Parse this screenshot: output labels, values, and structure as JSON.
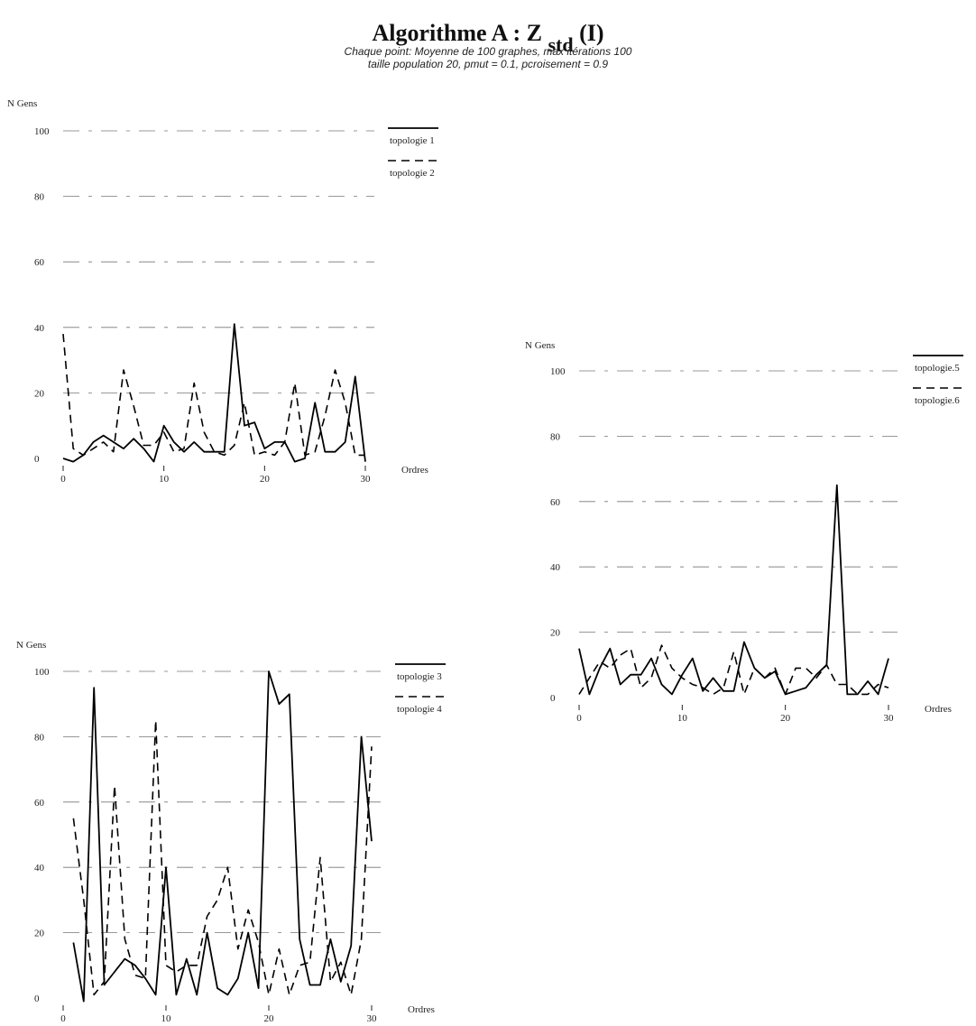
{
  "header": {
    "title_main": "Algorithme A : Z",
    "title_sub": "std",
    "title_suffix": "(I)",
    "subtitle_line1": "Chaque point: Moyenne de 100 graphes, max itérations 100",
    "subtitle_line2": "taille population 20, pmut = 0.1, pcroisement = 0.9"
  },
  "chart_data": [
    {
      "type": "line",
      "ylabel": "N Gens",
      "xlabel": "Ordres",
      "xlim": [
        0,
        30
      ],
      "ylim": [
        0,
        100
      ],
      "xticks": [
        0,
        10,
        20,
        30
      ],
      "yticks": [
        0,
        20,
        40,
        60,
        80,
        100
      ],
      "grid": true,
      "legend": "top-right",
      "series": [
        {
          "name": "topologie 1",
          "style": "solid",
          "x": [
            0,
            1,
            2,
            3,
            4,
            5,
            6,
            7,
            8,
            9,
            10,
            11,
            12,
            13,
            14,
            15,
            16,
            17,
            18,
            19,
            20,
            21,
            22,
            23,
            24,
            25,
            26,
            27,
            28,
            29,
            30
          ],
          "values": [
            0,
            -1,
            1,
            5,
            7,
            5,
            3,
            6,
            3,
            -1,
            10,
            5,
            2,
            5,
            2,
            2,
            2,
            41,
            10,
            11,
            3,
            5,
            5,
            -1,
            0,
            17,
            2,
            2,
            5,
            25,
            -1
          ]
        },
        {
          "name": "topologie 2",
          "style": "dashed",
          "x": [
            0,
            1,
            2,
            3,
            4,
            5,
            6,
            7,
            8,
            9,
            10,
            11,
            12,
            13,
            14,
            15,
            16,
            17,
            18,
            19,
            20,
            21,
            22,
            23,
            24,
            25,
            26,
            27,
            28,
            29,
            30
          ],
          "values": [
            38,
            3,
            1,
            3,
            5,
            2,
            27,
            16,
            4,
            4,
            8,
            2,
            3,
            23,
            8,
            2,
            1,
            4,
            17,
            1,
            2,
            1,
            5,
            23,
            1,
            2,
            13,
            27,
            17,
            1,
            1
          ]
        }
      ]
    },
    {
      "type": "line",
      "ylabel": "N Gens",
      "xlabel": "Ordres",
      "xlim": [
        0,
        30
      ],
      "ylim": [
        0,
        100
      ],
      "xticks": [
        0,
        10,
        20,
        30
      ],
      "yticks": [
        0,
        20,
        40,
        60,
        80,
        100
      ],
      "grid": true,
      "legend": "top-right",
      "series": [
        {
          "name": "topologie 3",
          "style": "solid",
          "x": [
            1,
            2,
            3,
            4,
            5,
            6,
            7,
            8,
            9,
            10,
            11,
            12,
            13,
            14,
            15,
            16,
            17,
            18,
            19,
            20,
            21,
            22,
            23,
            24,
            25,
            26,
            27,
            28,
            29,
            30
          ],
          "values": [
            17,
            -1,
            95,
            4,
            8,
            12,
            10,
            6,
            1,
            40,
            1,
            12,
            1,
            20,
            3,
            1,
            6,
            20,
            3,
            100,
            90,
            93,
            18,
            4,
            4,
            18,
            5,
            16,
            80,
            48
          ]
        },
        {
          "name": "topologie 4",
          "style": "dashed",
          "x": [
            1,
            2,
            3,
            4,
            5,
            6,
            7,
            8,
            9,
            10,
            11,
            12,
            13,
            14,
            15,
            16,
            17,
            18,
            19,
            20,
            21,
            22,
            23,
            24,
            25,
            26,
            27,
            28,
            29,
            30
          ],
          "values": [
            55,
            30,
            1,
            5,
            65,
            18,
            7,
            6,
            85,
            10,
            8,
            10,
            10,
            25,
            30,
            40,
            15,
            27,
            17,
            1,
            15,
            1,
            10,
            11,
            43,
            5,
            11,
            1,
            18,
            77
          ]
        }
      ]
    },
    {
      "type": "line",
      "ylabel": "N Gens",
      "xlabel": "Ordres",
      "xlim": [
        0,
        30
      ],
      "ylim": [
        0,
        100
      ],
      "xticks": [
        0,
        10,
        20,
        30
      ],
      "yticks": [
        0,
        20,
        40,
        60,
        80,
        100
      ],
      "grid": true,
      "legend": "top-right",
      "series": [
        {
          "name": "topologie.5",
          "style": "solid",
          "x": [
            0,
            1,
            2,
            3,
            4,
            5,
            6,
            7,
            8,
            9,
            10,
            11,
            12,
            13,
            14,
            15,
            16,
            17,
            18,
            19,
            20,
            21,
            22,
            23,
            24,
            25,
            26,
            27,
            28,
            29,
            30
          ],
          "values": [
            15,
            1,
            9,
            15,
            4,
            7,
            7,
            12,
            4,
            1,
            7,
            12,
            2,
            6,
            2,
            2,
            17,
            9,
            6,
            8,
            1,
            2,
            3,
            7,
            10,
            65,
            1,
            1,
            5,
            1,
            12
          ]
        },
        {
          "name": "topologie.6",
          "style": "dashed",
          "x": [
            0,
            1,
            2,
            3,
            4,
            5,
            6,
            7,
            8,
            9,
            10,
            11,
            12,
            13,
            14,
            15,
            16,
            17,
            18,
            19,
            20,
            21,
            22,
            23,
            24,
            25,
            26,
            27,
            28,
            29,
            30
          ],
          "values": [
            1,
            6,
            11,
            9,
            13,
            15,
            3,
            6,
            16,
            9,
            6,
            4,
            3,
            1,
            3,
            14,
            1,
            9,
            6,
            9,
            1,
            9,
            9,
            6,
            10,
            4,
            4,
            1,
            1,
            4,
            3
          ]
        }
      ]
    }
  ]
}
